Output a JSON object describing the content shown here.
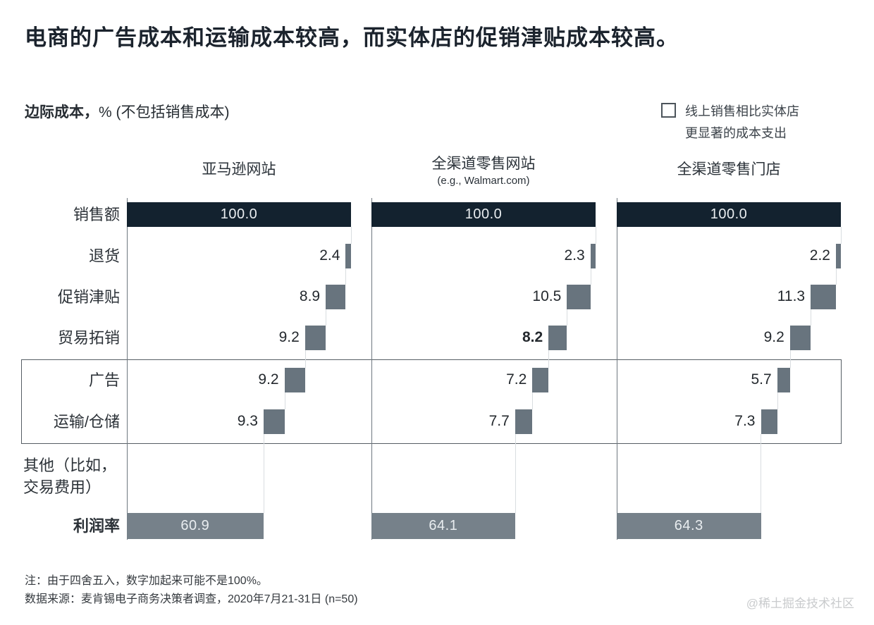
{
  "page_title": "电商的广告成本和运输成本较高，而实体店的促销津贴成本较高。",
  "subtitle": {
    "bold": "边际成本，",
    "rest": "% (不包括销售成本)"
  },
  "legend": {
    "icon": "outlined-square",
    "lines": [
      "线上销售相比实体店",
      "更显著的成本支出"
    ]
  },
  "chart_data": {
    "type": "bar",
    "subtype": "waterfall-horizontal",
    "unit": "%",
    "axis_range": [
      0,
      100
    ],
    "grid": false,
    "rows": [
      {
        "key": "sales",
        "label": "销售额"
      },
      {
        "key": "returns",
        "label": "退货"
      },
      {
        "key": "promo",
        "label": "促销津贴"
      },
      {
        "key": "trade",
        "label": "贸易拓销"
      },
      {
        "key": "advertising",
        "label": "广告",
        "in_highlight_box": true
      },
      {
        "key": "transport",
        "label": "运输/仓储",
        "in_highlight_box": true
      },
      {
        "key": "other",
        "label": "其他（比如，交易费用）",
        "label_lines": [
          "其他（比如，",
          "交易费用）"
        ],
        "value_shown": false
      },
      {
        "key": "profit",
        "label": "利润率",
        "bold": true
      }
    ],
    "series": [
      {
        "name": "亚马逊网站",
        "subheader": "",
        "values": {
          "sales": 100.0,
          "returns": 2.4,
          "promo": 8.9,
          "trade": 9.2,
          "advertising": 9.2,
          "transport": 9.3,
          "other": null,
          "profit": 60.9
        },
        "emphasized_values": []
      },
      {
        "name": "全渠道零售网站",
        "subheader": "(e.g., Walmart.com)",
        "values": {
          "sales": 100.0,
          "returns": 2.3,
          "promo": 10.5,
          "trade": 8.2,
          "advertising": 7.2,
          "transport": 7.7,
          "other": null,
          "profit": 64.1
        },
        "emphasized_values": [
          "trade"
        ]
      },
      {
        "name": "全渠道零售门店",
        "subheader": "",
        "values": {
          "sales": 100.0,
          "returns": 2.2,
          "promo": 11.3,
          "trade": 9.2,
          "advertising": 5.7,
          "transport": 7.3,
          "other": null,
          "profit": 64.3
        },
        "emphasized_values": []
      }
    ],
    "colors": {
      "sales_bar": "#13222f",
      "cost_bar": "#68747e",
      "profit_bar": "#76818a",
      "in_bar_text": "#e9edf0",
      "axis": "#6f787f",
      "connector": "#d9dde0",
      "highlight_box_border": "#565d64"
    },
    "legend_note": "线上销售相比实体店更显著的成本支出"
  },
  "notes": [
    "注：由于四舍五入，数字加起来可能不是100%。",
    "数据来源：麦肯锡电子商务决策者调查，2020年7月21-31日 (n=50)"
  ],
  "watermark": "@稀土掘金技术社区"
}
